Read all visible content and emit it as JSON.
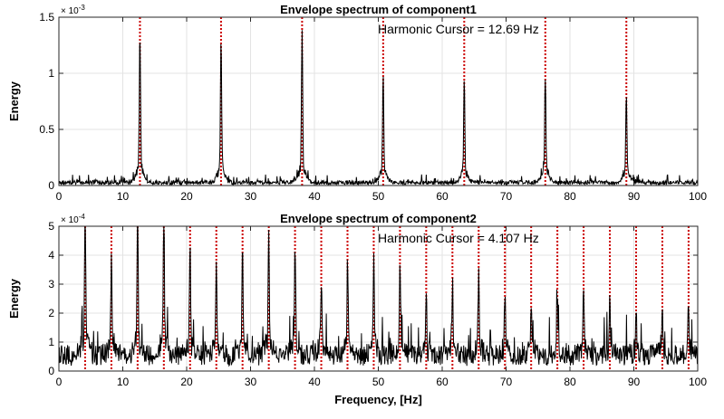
{
  "chart_data": [
    {
      "type": "line",
      "title": "Envelope spectrum of component1",
      "ylabel": "Energy",
      "xlabel": "",
      "annotation": "Harmonic Cursor = 12.69 Hz",
      "y_exponent_label": "× 10",
      "y_exponent": "-3",
      "xlim": [
        0,
        100
      ],
      "ylim": [
        0,
        1.5
      ],
      "x_ticks": [
        0,
        10,
        20,
        30,
        40,
        50,
        60,
        70,
        80,
        90,
        100
      ],
      "y_ticks": [
        0,
        0.5,
        1,
        1.5
      ],
      "x_tick_labels": [
        "0",
        "10",
        "20",
        "30",
        "40",
        "50",
        "60",
        "70",
        "80",
        "90",
        "100"
      ],
      "y_tick_labels": [
        "0",
        "0.5",
        "1",
        "1.5"
      ],
      "grid": true,
      "line_color": "#000000",
      "harmonic_color": "#cc0000",
      "harmonics": [
        12.69,
        25.38,
        38.07,
        50.76,
        63.45,
        76.14,
        88.83
      ],
      "peaks": [
        {
          "x": 12.69,
          "y": 1.19
        },
        {
          "x": 25.38,
          "y": 1.16
        },
        {
          "x": 38.07,
          "y": 1.21
        },
        {
          "x": 50.76,
          "y": 0.87
        },
        {
          "x": 63.45,
          "y": 0.82
        },
        {
          "x": 76.14,
          "y": 0.86
        },
        {
          "x": 88.83,
          "y": 0.69
        }
      ],
      "noise_level": 0.03
    },
    {
      "type": "line",
      "title": "Envelope spectrum of component2",
      "ylabel": "Energy",
      "xlabel": "Frequency, [Hz]",
      "annotation": "Harmonic Cursor = 4.107 Hz",
      "y_exponent_label": "× 10",
      "y_exponent": "-4",
      "xlim": [
        0,
        100
      ],
      "ylim": [
        0,
        5
      ],
      "x_ticks": [
        0,
        10,
        20,
        30,
        40,
        50,
        60,
        70,
        80,
        90,
        100
      ],
      "y_ticks": [
        0,
        1,
        2,
        3,
        4,
        5
      ],
      "x_tick_labels": [
        "0",
        "10",
        "20",
        "30",
        "40",
        "50",
        "60",
        "70",
        "80",
        "90",
        "100"
      ],
      "y_tick_labels": [
        "0",
        "1",
        "2",
        "3",
        "4",
        "5"
      ],
      "grid": true,
      "line_color": "#000000",
      "harmonic_color": "#cc0000",
      "harmonics": [
        4.107,
        8.214,
        12.321,
        16.428,
        20.535,
        24.642,
        28.749,
        32.856,
        36.963,
        41.07,
        45.177,
        49.284,
        53.391,
        57.498,
        61.605,
        65.712,
        69.819,
        73.926,
        78.033,
        82.14,
        86.247,
        90.354,
        94.461,
        98.568
      ],
      "peaks": [
        {
          "x": 4.107,
          "y": 4.5
        },
        {
          "x": 8.214,
          "y": 2.9
        },
        {
          "x": 12.321,
          "y": 4.2
        },
        {
          "x": 16.428,
          "y": 4.4
        },
        {
          "x": 20.535,
          "y": 3.6
        },
        {
          "x": 24.642,
          "y": 3.0
        },
        {
          "x": 28.749,
          "y": 3.3
        },
        {
          "x": 32.856,
          "y": 3.9
        },
        {
          "x": 36.963,
          "y": 3.5
        },
        {
          "x": 41.07,
          "y": 2.5
        },
        {
          "x": 45.177,
          "y": 2.9
        },
        {
          "x": 49.284,
          "y": 3.1
        },
        {
          "x": 53.391,
          "y": 2.6
        },
        {
          "x": 57.498,
          "y": 1.9
        },
        {
          "x": 61.605,
          "y": 2.0
        },
        {
          "x": 65.712,
          "y": 2.6
        },
        {
          "x": 69.819,
          "y": 2.0
        },
        {
          "x": 73.926,
          "y": 1.6
        },
        {
          "x": 78.033,
          "y": 1.6
        },
        {
          "x": 82.14,
          "y": 1.9
        },
        {
          "x": 86.247,
          "y": 1.8
        },
        {
          "x": 90.354,
          "y": 1.6
        },
        {
          "x": 94.461,
          "y": 1.3
        },
        {
          "x": 98.568,
          "y": 1.7
        }
      ],
      "noise_level": 0.18
    }
  ]
}
